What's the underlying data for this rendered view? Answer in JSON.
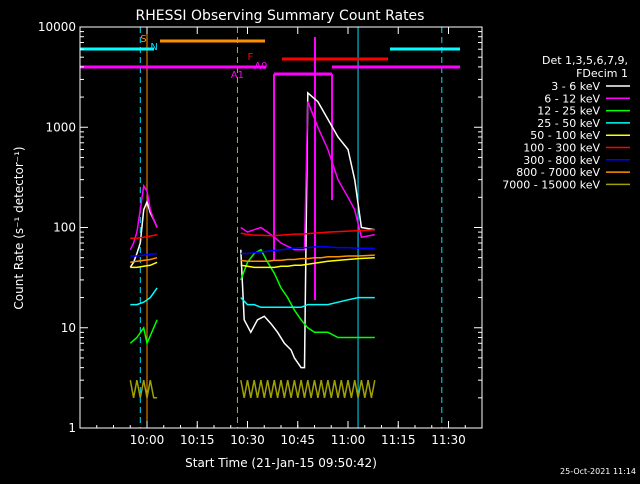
{
  "chart_data": {
    "type": "line",
    "title": "RHESSI Observing Summary Count Rates",
    "xlabel": "Start Time (21-Jan-15 09:50:42)",
    "ylabel": "Count Rate (s⁻¹ detector⁻¹)",
    "x_range_min": [
      -10,
      110
    ],
    "ylim": [
      1,
      10000
    ],
    "yscale": "log",
    "x_ticks_min": [
      10,
      25,
      40,
      55,
      70,
      85,
      100
    ],
    "x_tick_labels": [
      "10:00",
      "10:15",
      "10:30",
      "10:45",
      "11:00",
      "11:15",
      "11:30"
    ],
    "y_ticks": [
      1,
      10,
      100,
      1000,
      10000
    ],
    "y_tick_labels": [
      "1",
      "10",
      "100",
      "1000",
      "10000"
    ],
    "legend_title": [
      "Det 1,3,5,6,7,9,",
      "FDecim 1"
    ],
    "legend_placement": "right",
    "series": [
      {
        "name": "3 - 6 keV",
        "color": "#ffffff",
        "segments": [
          [
            [
              5,
              40
            ],
            [
              6,
              45
            ],
            [
              7,
              55
            ],
            [
              8,
              70
            ],
            [
              9,
              150
            ],
            [
              10,
              180
            ],
            [
              11,
              140
            ],
            [
              12,
              120
            ],
            [
              13,
              100
            ]
          ],
          [
            [
              38,
              60
            ],
            [
              39,
              12
            ],
            [
              41,
              9
            ],
            [
              43,
              12
            ],
            [
              45,
              13
            ],
            [
              47,
              11
            ],
            [
              49,
              9
            ],
            [
              51,
              7
            ],
            [
              53,
              6
            ],
            [
              54,
              5
            ],
            [
              56,
              4
            ],
            [
              57,
              4
            ],
            [
              58,
              2200
            ],
            [
              61,
              1800
            ],
            [
              64,
              1200
            ],
            [
              67,
              800
            ],
            [
              70,
              600
            ],
            [
              72,
              300
            ],
            [
              74,
              100
            ],
            [
              78,
              95
            ]
          ]
        ]
      },
      {
        "name": "6 - 12 keV",
        "color": "#ff00ff",
        "segments": [
          [
            [
              5,
              60
            ],
            [
              6,
              70
            ],
            [
              7,
              90
            ],
            [
              8,
              150
            ],
            [
              9,
              260
            ],
            [
              10,
              230
            ],
            [
              11,
              150
            ],
            [
              12,
              120
            ],
            [
              13,
              100
            ]
          ],
          [
            [
              38,
              100
            ],
            [
              40,
              90
            ],
            [
              42,
              95
            ],
            [
              44,
              100
            ],
            [
              46,
              90
            ],
            [
              48,
              80
            ],
            [
              50,
              70
            ],
            [
              52,
              65
            ],
            [
              54,
              60
            ],
            [
              57,
              60
            ],
            [
              58,
              1800
            ],
            [
              61,
              1000
            ],
            [
              64,
              600
            ],
            [
              67,
              300
            ],
            [
              70,
              200
            ],
            [
              72,
              150
            ],
            [
              74,
              80
            ],
            [
              78,
              85
            ]
          ]
        ]
      },
      {
        "name": "12 - 25 keV",
        "color": "#00ff00",
        "segments": [
          [
            [
              5,
              7
            ],
            [
              7,
              8
            ],
            [
              9,
              10
            ],
            [
              10,
              7
            ],
            [
              12,
              10
            ],
            [
              13,
              12
            ]
          ],
          [
            [
              38,
              30
            ],
            [
              40,
              45
            ],
            [
              42,
              55
            ],
            [
              44,
              60
            ],
            [
              46,
              45
            ],
            [
              48,
              35
            ],
            [
              50,
              25
            ],
            [
              52,
              20
            ],
            [
              54,
              15
            ],
            [
              56,
              12
            ],
            [
              58,
              10
            ],
            [
              60,
              9
            ],
            [
              62,
              9
            ],
            [
              64,
              9
            ],
            [
              67,
              8
            ],
            [
              70,
              8
            ],
            [
              73,
              8
            ],
            [
              78,
              8
            ]
          ]
        ]
      },
      {
        "name": "25 - 50 keV",
        "color": "#00ffff",
        "segments": [
          [
            [
              5,
              17
            ],
            [
              7,
              17
            ],
            [
              9,
              18
            ],
            [
              11,
              20
            ],
            [
              13,
              25
            ]
          ],
          [
            [
              38,
              20
            ],
            [
              40,
              17
            ],
            [
              42,
              17
            ],
            [
              44,
              16
            ],
            [
              46,
              16
            ],
            [
              48,
              16
            ],
            [
              50,
              16
            ],
            [
              52,
              16
            ],
            [
              54,
              16
            ],
            [
              56,
              16
            ],
            [
              58,
              17
            ],
            [
              60,
              17
            ],
            [
              62,
              17
            ],
            [
              64,
              17
            ],
            [
              67,
              18
            ],
            [
              70,
              19
            ],
            [
              73,
              20
            ],
            [
              78,
              20
            ]
          ]
        ]
      },
      {
        "name": "50 - 100 keV",
        "color": "#ffff00",
        "segments": [
          [
            [
              5,
              40
            ],
            [
              7,
              40
            ],
            [
              9,
              41
            ],
            [
              11,
              42
            ],
            [
              13,
              45
            ]
          ],
          [
            [
              38,
              42
            ],
            [
              40,
              41
            ],
            [
              42,
              40
            ],
            [
              44,
              40
            ],
            [
              46,
              40
            ],
            [
              48,
              40
            ],
            [
              50,
              41
            ],
            [
              52,
              41
            ],
            [
              54,
              42
            ],
            [
              56,
              42
            ],
            [
              58,
              43
            ],
            [
              60,
              44
            ],
            [
              62,
              45
            ],
            [
              64,
              46
            ],
            [
              67,
              47
            ],
            [
              70,
              48
            ],
            [
              73,
              49
            ],
            [
              78,
              50
            ]
          ]
        ]
      },
      {
        "name": "100 - 300 keV",
        "color": "#ff0000",
        "segments": [
          [
            [
              5,
              78
            ],
            [
              7,
              78
            ],
            [
              9,
              80
            ],
            [
              11,
              82
            ],
            [
              13,
              85
            ]
          ],
          [
            [
              38,
              88
            ],
            [
              40,
              85
            ],
            [
              42,
              84
            ],
            [
              44,
              84
            ],
            [
              46,
              83
            ],
            [
              48,
              83
            ],
            [
              50,
              84
            ],
            [
              52,
              85
            ],
            [
              54,
              86
            ],
            [
              56,
              86
            ],
            [
              58,
              87
            ],
            [
              60,
              88
            ],
            [
              62,
              89
            ],
            [
              64,
              90
            ],
            [
              67,
              91
            ],
            [
              70,
              92
            ],
            [
              73,
              93
            ],
            [
              78,
              95
            ]
          ]
        ]
      },
      {
        "name": "300 - 800 keV",
        "color": "#0000ff",
        "segments": [
          [
            [
              5,
              52
            ],
            [
              7,
              52
            ],
            [
              9,
              53
            ],
            [
              11,
              54
            ],
            [
              13,
              55
            ]
          ],
          [
            [
              38,
              55
            ],
            [
              40,
              55
            ],
            [
              42,
              56
            ],
            [
              44,
              57
            ],
            [
              46,
              58
            ],
            [
              48,
              59
            ],
            [
              50,
              60
            ],
            [
              52,
              61
            ],
            [
              54,
              62
            ],
            [
              56,
              63
            ],
            [
              58,
              63
            ],
            [
              60,
              64
            ],
            [
              62,
              64
            ],
            [
              64,
              64
            ],
            [
              67,
              63
            ],
            [
              70,
              63
            ],
            [
              73,
              62
            ],
            [
              78,
              62
            ]
          ]
        ]
      },
      {
        "name": "800 - 7000 keV",
        "color": "#ff9000",
        "segments": [
          [
            [
              5,
              45
            ],
            [
              7,
              46
            ],
            [
              9,
              47
            ],
            [
              11,
              48
            ],
            [
              13,
              50
            ]
          ],
          [
            [
              38,
              47
            ],
            [
              40,
              46
            ],
            [
              42,
              46
            ],
            [
              44,
              46
            ],
            [
              46,
              46
            ],
            [
              48,
              47
            ],
            [
              50,
              47
            ],
            [
              52,
              48
            ],
            [
              54,
              48
            ],
            [
              56,
              49
            ],
            [
              58,
              49
            ],
            [
              60,
              50
            ],
            [
              62,
              50
            ],
            [
              64,
              51
            ],
            [
              67,
              51
            ],
            [
              70,
              52
            ],
            [
              73,
              52
            ],
            [
              78,
              53
            ]
          ]
        ]
      },
      {
        "name": "7000 - 15000 keV",
        "color": "#a0a000",
        "segments": [
          [
            [
              5,
              3
            ],
            [
              6,
              2
            ],
            [
              7,
              3
            ],
            [
              8,
              2
            ],
            [
              9,
              3
            ],
            [
              10,
              2
            ],
            [
              11,
              3
            ],
            [
              12,
              2
            ],
            [
              13,
              2
            ]
          ],
          [
            [
              38,
              3
            ],
            [
              39,
              2
            ],
            [
              40,
              3
            ],
            [
              41,
              2
            ],
            [
              42,
              3
            ],
            [
              43,
              2
            ],
            [
              44,
              3
            ],
            [
              45,
              2
            ],
            [
              46,
              3
            ],
            [
              47,
              2
            ],
            [
              48,
              3
            ],
            [
              49,
              2
            ],
            [
              50,
              3
            ],
            [
              51,
              2
            ],
            [
              52,
              3
            ],
            [
              53,
              2
            ],
            [
              54,
              3
            ],
            [
              55,
              2
            ],
            [
              56,
              3
            ],
            [
              57,
              2
            ],
            [
              58,
              3
            ],
            [
              59,
              2
            ],
            [
              60,
              3
            ],
            [
              61,
              2
            ],
            [
              62,
              3
            ],
            [
              63,
              2
            ],
            [
              64,
              3
            ],
            [
              65,
              2
            ],
            [
              66,
              3
            ],
            [
              67,
              2
            ],
            [
              68,
              3
            ],
            [
              69,
              2
            ],
            [
              70,
              3
            ],
            [
              71,
              2
            ],
            [
              72,
              3
            ],
            [
              73,
              2
            ],
            [
              74,
              3
            ],
            [
              75,
              2
            ],
            [
              76,
              3
            ],
            [
              77,
              2
            ],
            [
              78,
              3
            ]
          ]
        ]
      }
    ],
    "vertical_markers": [
      {
        "x_min": 8,
        "color": "#00e0ff",
        "style": "dashed"
      },
      {
        "x_min": 10,
        "color": "#ff9000",
        "style": "solid"
      },
      {
        "x_min": 37,
        "color": "#ff9000",
        "style": "dashed"
      },
      {
        "x_min": 73,
        "color": "#00e0ff",
        "style": "solid"
      },
      {
        "x_min": 98,
        "color": "#00e0ff",
        "style": "dashed"
      }
    ],
    "annotations": [
      {
        "label": "S",
        "x_min": 8,
        "color": "#ff9000"
      },
      {
        "label": "N",
        "x_min": 11,
        "color": "#00e0ff"
      },
      {
        "label": "F",
        "x_min": 40,
        "color": "#ff0000"
      },
      {
        "label": "A0",
        "x_min": 42,
        "color": "#ff00ff"
      },
      {
        "label": "A1",
        "x_min": 35,
        "color": "#ff00ff"
      }
    ],
    "timestamp": "25-Oct-2021 11:14"
  }
}
